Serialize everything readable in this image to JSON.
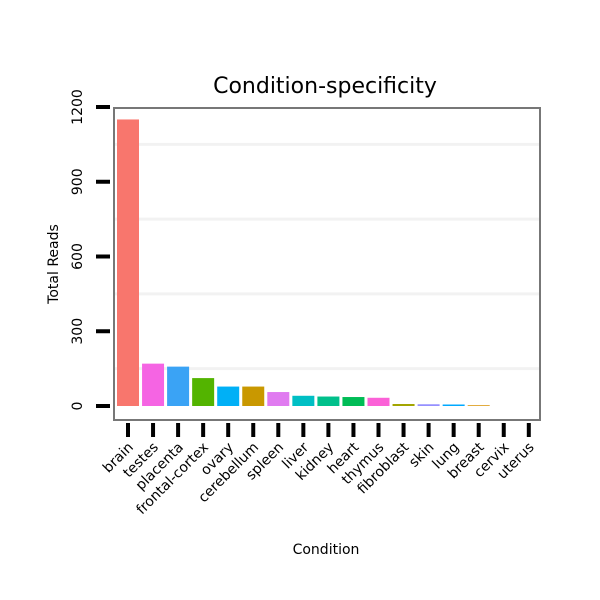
{
  "chart_data": {
    "type": "bar",
    "title": "Condition-specificity",
    "xlabel": "Condition",
    "ylabel": "Total Reads",
    "ylim": [
      0,
      1200
    ],
    "yticks": [
      0,
      300,
      600,
      900,
      1200
    ],
    "categories": [
      "brain",
      "testes",
      "placenta",
      "frontal-cortex",
      "ovary",
      "cerebellum",
      "spleen",
      "liver",
      "kidney",
      "heart",
      "thymus",
      "fibroblast",
      "skin",
      "lung",
      "breast",
      "cervix",
      "uterus"
    ],
    "values": [
      1150,
      170,
      158,
      112,
      78,
      78,
      56,
      41,
      38,
      36,
      33,
      8,
      7,
      6,
      3,
      0,
      0
    ],
    "colors": [
      "#F8766D",
      "#F564E3",
      "#3AA3F5",
      "#53B400",
      "#00B0F6",
      "#C99800",
      "#E07BF0",
      "#00BFC4",
      "#00C08B",
      "#00BC56",
      "#FB61D7",
      "#A3A500",
      "#9590FF",
      "#00A9FF",
      "#D89000",
      "#E76BF3",
      "#00BA38"
    ],
    "grid": true
  }
}
